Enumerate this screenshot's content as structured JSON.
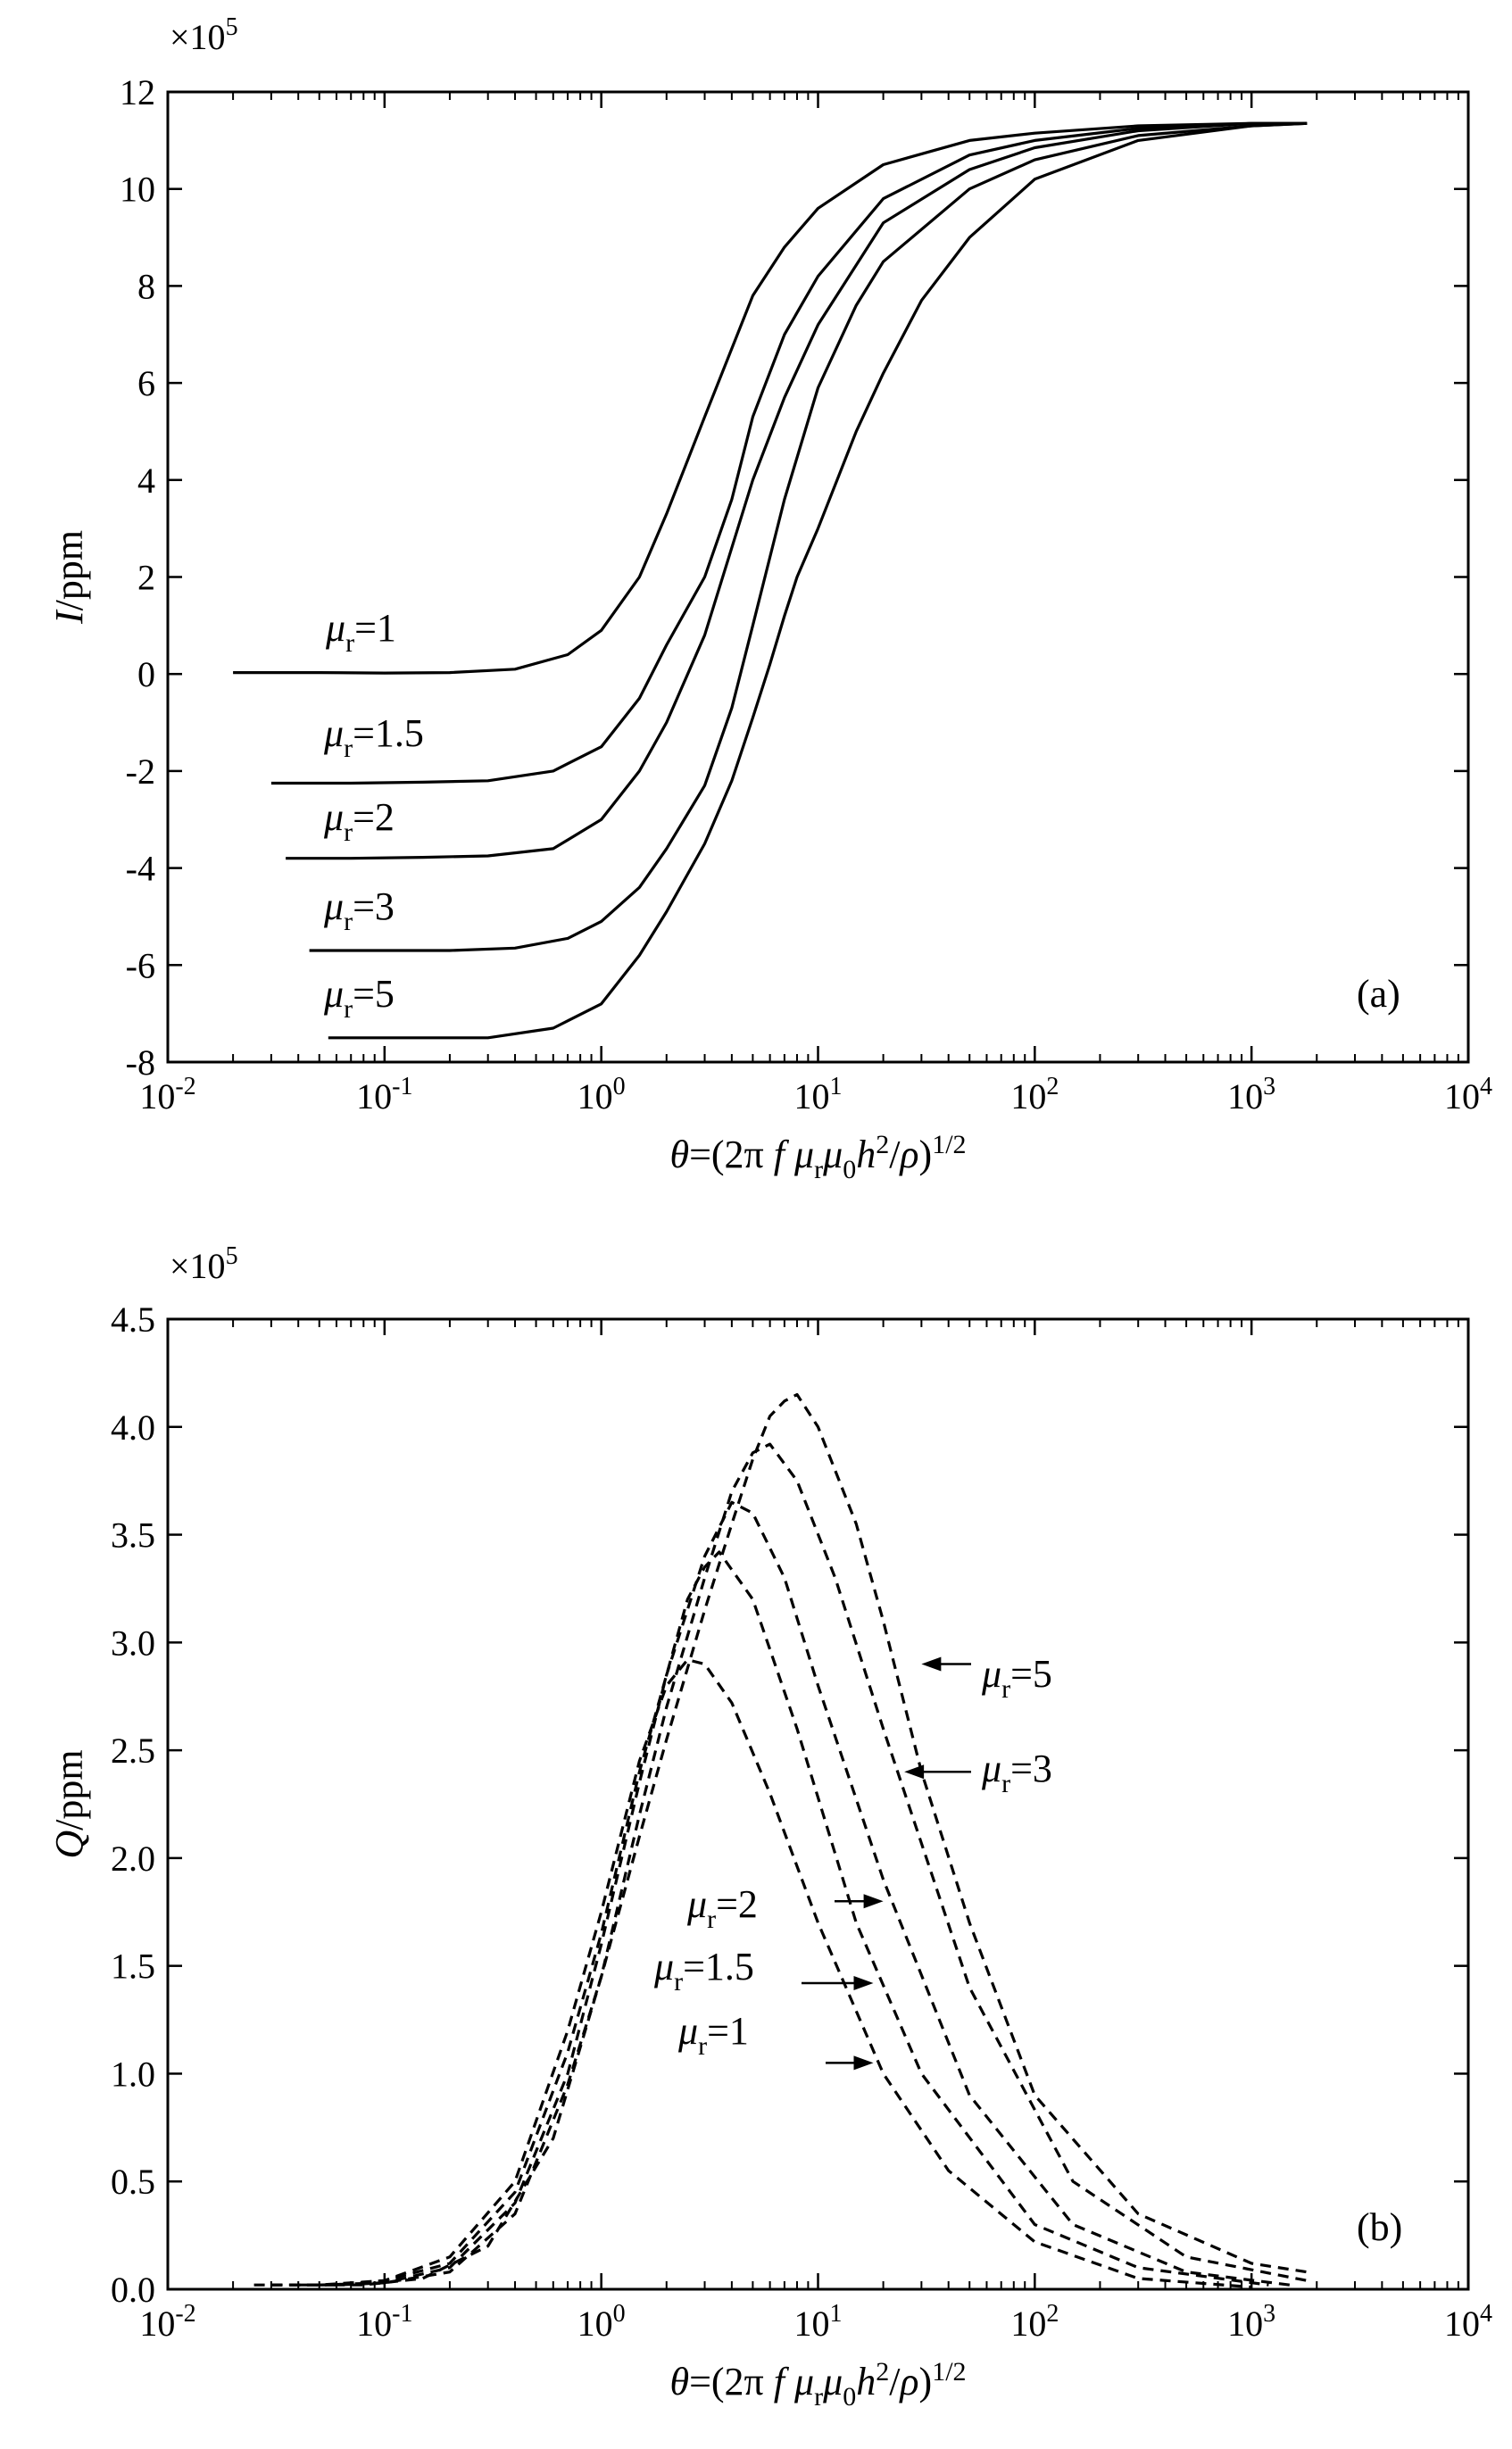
{
  "chart_data": [
    {
      "type": "line",
      "panel_label": "(a)",
      "xscale": "log",
      "xlim": [
        0.01,
        10000
      ],
      "ylim": [
        -8,
        12
      ],
      "xticks": [
        0.01,
        0.1,
        1,
        10,
        100,
        1000,
        10000
      ],
      "xtick_labels": [
        {
          "base": "10",
          "exp": "-2"
        },
        {
          "base": "10",
          "exp": "-1"
        },
        {
          "base": "10",
          "exp": "0"
        },
        {
          "base": "10",
          "exp": "1"
        },
        {
          "base": "10",
          "exp": "2"
        },
        {
          "base": "10",
          "exp": "3"
        },
        {
          "base": "10",
          "exp": "4"
        }
      ],
      "yticks": [
        -8,
        -6,
        -4,
        -2,
        0,
        2,
        4,
        6,
        8,
        10,
        12
      ],
      "ytick_labels": [
        "-8",
        "-6",
        "-4",
        "-2",
        "0",
        "2",
        "4",
        "6",
        "8",
        "10",
        "12"
      ],
      "multiplier": {
        "prefix": "×10",
        "exp": "5"
      },
      "ylabel": {
        "sym": "I",
        "rest": "/ppm"
      },
      "xlabel": {
        "theta": "θ",
        "a": "=(2π ",
        "f": "f",
        "mu": "μ",
        "r": "r",
        "mu2": "μ",
        "zero": "0",
        "h": "h",
        "two": "2",
        "slash": "/",
        "rho": "ρ",
        "close": ")",
        "half": "1/2"
      },
      "line_style": "solid",
      "series": [
        {
          "mu": "μ",
          "sub": "r",
          "eq": "=1",
          "x": [
            0.02,
            0.05,
            0.1,
            0.2,
            0.4,
            0.7,
            1,
            1.5,
            2,
            3,
            5,
            7,
            10,
            20,
            50,
            100,
            300,
            1000,
            1800
          ],
          "y": [
            0.03,
            0.03,
            0.02,
            0.03,
            0.1,
            0.4,
            0.9,
            2.0,
            3.3,
            5.3,
            7.8,
            8.8,
            9.6,
            10.5,
            11.0,
            11.15,
            11.3,
            11.35,
            11.35
          ]
        },
        {
          "mu": "μ",
          "sub": "r",
          "eq": "=1.5",
          "x": [
            0.03,
            0.07,
            0.15,
            0.3,
            0.6,
            1,
            1.5,
            2,
            3,
            4,
            5,
            7,
            10,
            20,
            50,
            100,
            300,
            1000,
            1800
          ],
          "y": [
            -2.25,
            -2.25,
            -2.23,
            -2.2,
            -2.0,
            -1.5,
            -0.5,
            0.6,
            2.0,
            3.6,
            5.3,
            7.0,
            8.2,
            9.8,
            10.7,
            11.0,
            11.25,
            11.35,
            11.35
          ]
        },
        {
          "mu": "μ",
          "sub": "r",
          "eq": "=2",
          "x": [
            0.035,
            0.07,
            0.15,
            0.3,
            0.6,
            1,
            1.5,
            2,
            3,
            5,
            7,
            10,
            20,
            50,
            100,
            300,
            1000,
            1800
          ],
          "y": [
            -3.8,
            -3.8,
            -3.78,
            -3.75,
            -3.6,
            -3.0,
            -2.0,
            -1.0,
            0.8,
            4.0,
            5.7,
            7.2,
            9.3,
            10.4,
            10.85,
            11.2,
            11.35,
            11.35
          ]
        },
        {
          "mu": "μ",
          "sub": "r",
          "eq": "=3",
          "x": [
            0.045,
            0.1,
            0.2,
            0.4,
            0.7,
            1,
            1.5,
            2,
            3,
            4,
            5,
            7,
            10,
            15,
            20,
            50,
            100,
            300,
            1000,
            1800
          ],
          "y": [
            -5.7,
            -5.7,
            -5.7,
            -5.65,
            -5.45,
            -5.1,
            -4.4,
            -3.6,
            -2.3,
            -0.7,
            1.0,
            3.6,
            5.9,
            7.6,
            8.5,
            10.0,
            10.6,
            11.1,
            11.3,
            11.35
          ]
        },
        {
          "mu": "μ",
          "sub": "r",
          "eq": "=5",
          "x": [
            0.055,
            0.1,
            0.3,
            0.6,
            1,
            1.5,
            2,
            3,
            4,
            5,
            6,
            7,
            8,
            10,
            15,
            20,
            30,
            50,
            100,
            300,
            1000,
            1800
          ],
          "y": [
            -7.5,
            -7.5,
            -7.5,
            -7.3,
            -6.8,
            -5.8,
            -4.9,
            -3.5,
            -2.2,
            -0.9,
            0.2,
            1.2,
            2.0,
            3.0,
            5.0,
            6.2,
            7.7,
            9.0,
            10.2,
            11.0,
            11.3,
            11.35
          ]
        }
      ]
    },
    {
      "type": "line",
      "panel_label": "(b)",
      "xscale": "log",
      "xlim": [
        0.01,
        10000
      ],
      "ylim": [
        0,
        4.5
      ],
      "xticks": [
        0.01,
        0.1,
        1,
        10,
        100,
        1000,
        10000
      ],
      "xtick_labels": [
        {
          "base": "10",
          "exp": "-2"
        },
        {
          "base": "10",
          "exp": "-1"
        },
        {
          "base": "10",
          "exp": "0"
        },
        {
          "base": "10",
          "exp": "1"
        },
        {
          "base": "10",
          "exp": "2"
        },
        {
          "base": "10",
          "exp": "3"
        },
        {
          "base": "10",
          "exp": "4"
        }
      ],
      "yticks": [
        0,
        0.5,
        1.0,
        1.5,
        2.0,
        2.5,
        3.0,
        3.5,
        4.0,
        4.5
      ],
      "ytick_labels": [
        "0.0",
        "0.5",
        "1.0",
        "1.5",
        "2.0",
        "2.5",
        "3.0",
        "3.5",
        "4.0",
        "4.5"
      ],
      "multiplier": {
        "prefix": "×10",
        "exp": "5"
      },
      "ylabel": {
        "sym": "Q",
        "rest": "/ppm"
      },
      "xlabel": {
        "theta": "θ",
        "a": "=(2π ",
        "f": "f",
        "mu": "μ",
        "r": "r",
        "mu2": "μ",
        "zero": "0",
        "h": "h",
        "two": "2",
        "slash": "/",
        "rho": "ρ",
        "close": ")",
        "half": "1/2"
      },
      "line_style": "dashed",
      "series": [
        {
          "mu": "μ",
          "sub": "r",
          "eq": "=1",
          "arrow_to": [
            18,
            1.05
          ],
          "x": [
            0.025,
            0.05,
            0.1,
            0.2,
            0.4,
            0.7,
            1,
            1.5,
            2,
            2.5,
            3,
            4,
            6,
            10,
            20,
            40,
            100,
            300,
            1000
          ],
          "y": [
            0.02,
            0.02,
            0.04,
            0.15,
            0.5,
            1.2,
            1.75,
            2.45,
            2.8,
            2.92,
            2.9,
            2.72,
            2.3,
            1.7,
            1.0,
            0.55,
            0.22,
            0.05,
            0.01
          ]
        },
        {
          "mu": "μ",
          "sub": "r",
          "eq": "=1.5",
          "arrow_to": [
            18,
            1.42
          ],
          "x": [
            0.03,
            0.06,
            0.1,
            0.2,
            0.4,
            0.7,
            1,
            1.5,
            2,
            2.5,
            3,
            3.5,
            5,
            8,
            15,
            30,
            100,
            300,
            1200
          ],
          "y": [
            0.02,
            0.02,
            0.04,
            0.12,
            0.45,
            1.1,
            1.65,
            2.4,
            2.85,
            3.2,
            3.35,
            3.42,
            3.2,
            2.6,
            1.7,
            1.0,
            0.3,
            0.1,
            0.02
          ]
        },
        {
          "mu": "μ",
          "sub": "r",
          "eq": "=2",
          "arrow_to": [
            20,
            1.8
          ],
          "x": [
            0.03,
            0.06,
            0.1,
            0.2,
            0.4,
            0.7,
            1,
            1.5,
            2,
            3,
            4,
            5,
            7,
            10,
            20,
            50,
            150,
            500,
            1500
          ],
          "y": [
            0.02,
            0.02,
            0.03,
            0.1,
            0.4,
            1.0,
            1.6,
            2.35,
            2.85,
            3.4,
            3.65,
            3.6,
            3.3,
            2.8,
            1.9,
            0.9,
            0.3,
            0.08,
            0.02
          ]
        },
        {
          "mu": "μ",
          "sub": "r",
          "eq": "=3",
          "arrow_to": [
            25,
            2.4
          ],
          "x": [
            0.04,
            0.08,
            0.15,
            0.3,
            0.6,
            1,
            1.5,
            2,
            3,
            4,
            5,
            6,
            8,
            12,
            20,
            50,
            150,
            500,
            1800
          ],
          "y": [
            0.02,
            0.02,
            0.05,
            0.2,
            0.7,
            1.45,
            2.2,
            2.7,
            3.3,
            3.7,
            3.88,
            3.92,
            3.75,
            3.3,
            2.6,
            1.4,
            0.5,
            0.15,
            0.04
          ]
        },
        {
          "mu": "μ",
          "sub": "r",
          "eq": "=5",
          "arrow_to": [
            30,
            2.9
          ],
          "x": [
            0.05,
            0.1,
            0.2,
            0.4,
            0.7,
            1,
            1.5,
            2,
            3,
            4,
            5,
            6,
            7,
            8,
            10,
            15,
            20,
            30,
            50,
            100,
            300,
            1000,
            1800
          ],
          "y": [
            0.02,
            0.03,
            0.08,
            0.35,
            0.95,
            1.45,
            2.1,
            2.55,
            3.15,
            3.55,
            3.85,
            4.05,
            4.12,
            4.15,
            4.0,
            3.55,
            3.1,
            2.4,
            1.7,
            0.9,
            0.35,
            0.12,
            0.08
          ]
        }
      ]
    }
  ]
}
